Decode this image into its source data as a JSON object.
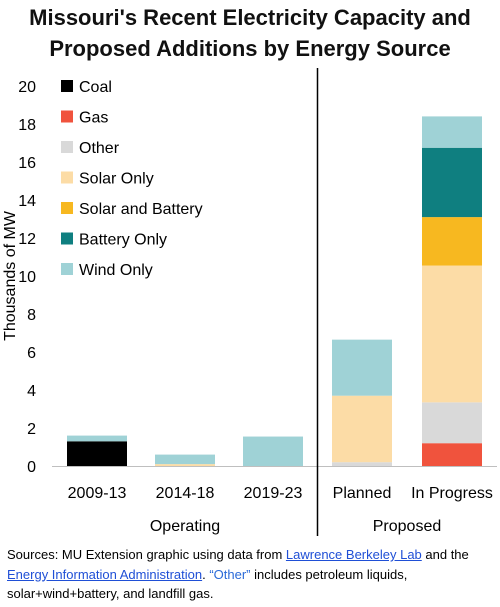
{
  "title_line1": "Missouri's Recent Electricity Capacity and",
  "title_line2": "Proposed Additions by Energy Source",
  "sources": {
    "prefix": "Sources: MU Extension graphic using data from ",
    "link1": "Lawrence Berkeley Lab",
    "mid": " and the ",
    "link2": "Energy Information Administration",
    "note_a": ". ",
    "note_quote": "“Other”",
    "note_b": " includes petroleum liquids, solar+wind+battery, and landfill gas."
  },
  "chart_data": {
    "type": "bar",
    "stacked": true,
    "ylabel": "Thousands of MW",
    "ylim": [
      0,
      20
    ],
    "yticks": [
      0,
      2,
      4,
      6,
      8,
      10,
      12,
      14,
      16,
      18,
      20
    ],
    "categories": [
      "2009-13",
      "2014-18",
      "2019-23",
      "Planned",
      "In Progress"
    ],
    "groups": [
      {
        "label": "Operating",
        "categories": [
          "2009-13",
          "2014-18",
          "2019-23"
        ]
      },
      {
        "label": "Proposed",
        "categories": [
          "Planned",
          "In Progress"
        ]
      }
    ],
    "legend_position": "top-left",
    "series": [
      {
        "name": "Coal",
        "color": "#000000",
        "values": [
          1.3,
          0,
          0,
          0,
          0
        ]
      },
      {
        "name": "Gas",
        "color": "#f0533d",
        "values": [
          0,
          0,
          0,
          0,
          1.2
        ]
      },
      {
        "name": "Other",
        "color": "#d9d9d9",
        "values": [
          0,
          0,
          0,
          0.2,
          2.15
        ]
      },
      {
        "name": "Solar Only",
        "color": "#fcdca6",
        "values": [
          0,
          0.1,
          0,
          3.5,
          7.2
        ]
      },
      {
        "name": "Solar and Battery",
        "color": "#f7b820",
        "values": [
          0,
          0,
          0,
          0,
          2.55
        ]
      },
      {
        "name": "Battery Only",
        "color": "#0f7f80",
        "values": [
          0,
          0,
          0,
          0,
          3.65
        ]
      },
      {
        "name": "Wind Only",
        "color": "#9fd2d6",
        "values": [
          0.3,
          0.5,
          1.55,
          2.95,
          1.65
        ]
      }
    ]
  }
}
